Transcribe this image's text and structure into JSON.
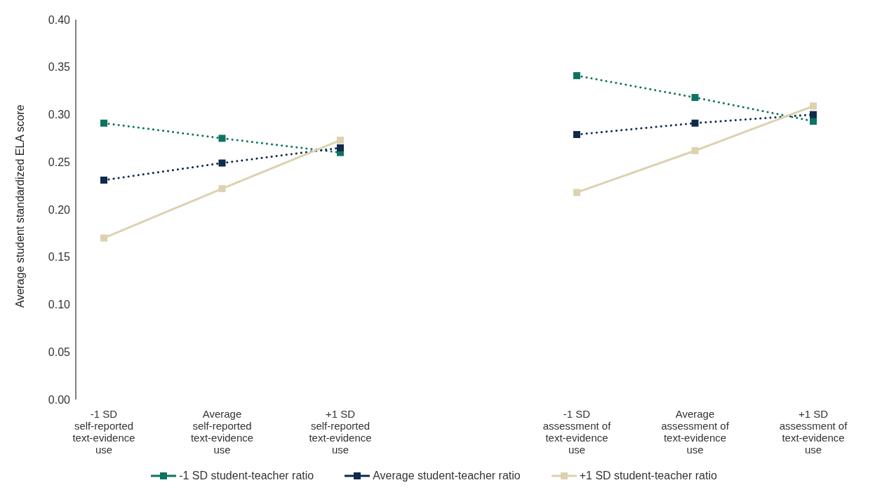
{
  "chart_data": {
    "type": "line",
    "ylabel": "Average student standardized ELA score",
    "categories": [
      "-1 SD self-reported text-evidence use",
      "Average self-reported text-evidence use",
      "+1 SD self-reported text-evidence use",
      null,
      "-1 SD assessment of text-evidence use",
      "Average assessment of text-evidence use",
      "+1 SD assessment of text-evidence use"
    ],
    "series": [
      {
        "name": "-1 SD student-teacher ratio",
        "color": "#0f7360",
        "line_style": "dotted",
        "values": [
          0.291,
          0.275,
          0.26,
          null,
          0.341,
          0.318,
          0.293
        ]
      },
      {
        "name": "Average student-teacher ratio",
        "color": "#0f2a4a",
        "line_style": "dotted",
        "values": [
          0.231,
          0.249,
          0.265,
          null,
          0.279,
          0.291,
          0.3
        ]
      },
      {
        "name": "+1 SD student-teacher ratio",
        "color": "#ddd1b0",
        "line_style": "solid",
        "values": [
          0.17,
          0.222,
          0.273,
          null,
          0.218,
          0.262,
          0.309
        ]
      }
    ],
    "ylim": [
      0,
      0.4
    ],
    "yticks": [
      {
        "value": 0,
        "label": "0.00"
      },
      {
        "value": 0.05,
        "label": "0.05"
      },
      {
        "value": 0.1,
        "label": "0.10"
      },
      {
        "value": 0.15,
        "label": "0.15"
      },
      {
        "value": 0.2,
        "label": "0.20"
      },
      {
        "value": 0.25,
        "label": "0.25"
      },
      {
        "value": 0.3,
        "label": "0.30"
      },
      {
        "value": 0.35,
        "label": "0.35"
      },
      {
        "value": 0.4,
        "label": "0.40"
      }
    ],
    "grid": false,
    "legend": "bottom",
    "marker": "square"
  }
}
